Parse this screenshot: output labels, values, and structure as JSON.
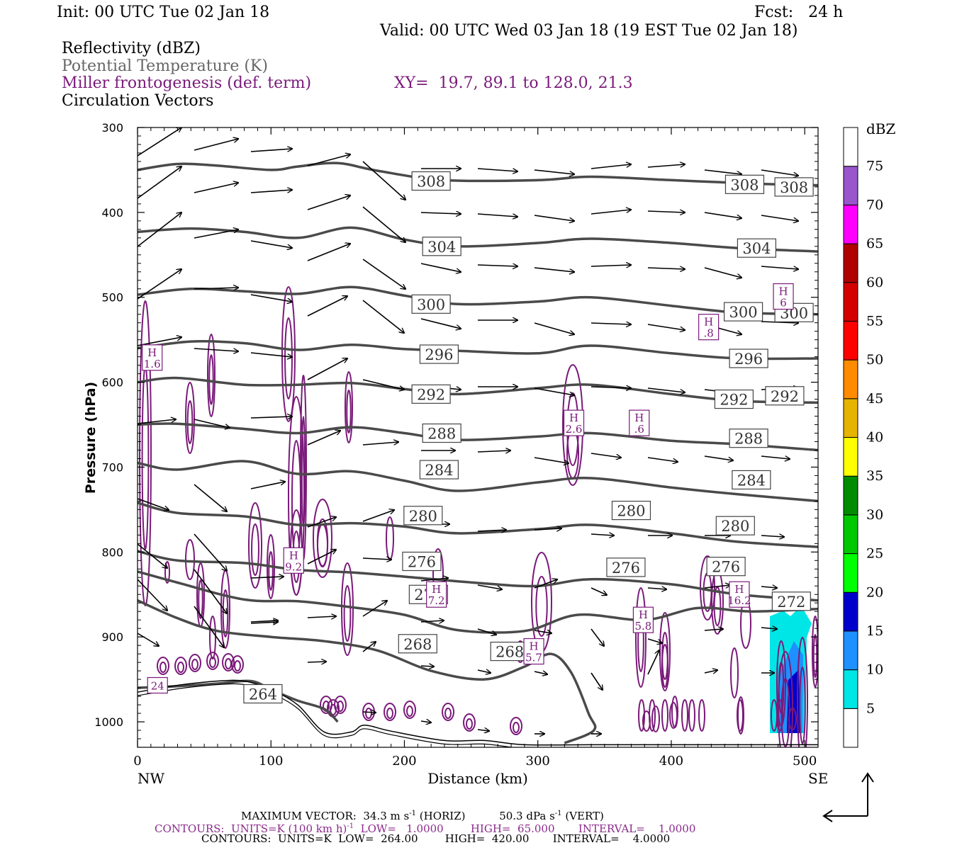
{
  "header": {
    "init": "Init: 00 UTC Tue 02 Jan 18",
    "fcst": "Fcst:   24 h",
    "valid": "Valid: 00 UTC Wed 03 Jan 18 (19 EST Tue 02 Jan 18)",
    "field1": "Reflectivity (dBZ)",
    "field2": "Potential Temperature (K)",
    "field3": "Miller frontogenesis (def. term)",
    "xy": "XY=  19.7, 89.1 to 128.0, 21.3",
    "field4": "Circulation Vectors"
  },
  "footer": {
    "max_vector": "MAXIMUM VECTOR:  34.3 m s",
    "horiz": "(HORIZ)",
    "vert": "50.3 dPa s",
    "vert_unit": "(VERT)",
    "contours1": "CONTOURS:  UNITS=K (100 km h)",
    "contours1_rest": "LOW=   1.0000        HIGH=  65.000       INTERVAL=    1.0000",
    "contours2": "CONTOURS:  UNITS=K  LOW=  264.00        HIGH=  420.00       INTERVAL=    4.0000"
  },
  "colors": {
    "theta": "#4a4a4a",
    "fronto": "#7a1a7a",
    "vector": "#000000",
    "terrain": "#000000"
  },
  "chart_data": {
    "type": "contour",
    "xlabel": "Distance (km)",
    "ylabel": "Pressure (hPa)",
    "xlim": [
      0,
      510
    ],
    "ylim": [
      1030,
      300
    ],
    "x_ticks": [
      0,
      100,
      200,
      300,
      400,
      500
    ],
    "y_ticks": [
      300,
      400,
      500,
      600,
      700,
      800,
      900,
      1000
    ],
    "x_end_labels": {
      "left": "NW",
      "right": "SE"
    },
    "colorbar": {
      "unit": "dBZ",
      "levels": [
        5,
        10,
        15,
        20,
        25,
        30,
        35,
        40,
        45,
        50,
        55,
        60,
        65,
        70,
        75
      ],
      "colors": [
        "#ffffff",
        "#00e6e6",
        "#1e90ff",
        "#0000cd",
        "#00ff00",
        "#00c800",
        "#008c00",
        "#ffff00",
        "#e6b400",
        "#ff8c00",
        "#ff0000",
        "#d40000",
        "#b00000",
        "#ff00ff",
        "#9955cc",
        "#ffffff"
      ]
    },
    "theta_contours": [
      {
        "value": 308,
        "points": [
          [
            0,
            350
          ],
          [
            30,
            343
          ],
          [
            60,
            345
          ],
          [
            100,
            350
          ],
          [
            120,
            346
          ],
          [
            150,
            342
          ],
          [
            180,
            351
          ],
          [
            230,
            362
          ],
          [
            300,
            362
          ],
          [
            340,
            358
          ],
          [
            400,
            362
          ],
          [
            460,
            366
          ],
          [
            510,
            368
          ]
        ]
      },
      {
        "value": 304,
        "points": [
          [
            0,
            423
          ],
          [
            40,
            419
          ],
          [
            80,
            423
          ],
          [
            120,
            430
          ],
          [
            160,
            418
          ],
          [
            200,
            432
          ],
          [
            240,
            440
          ],
          [
            300,
            436
          ],
          [
            340,
            431
          ],
          [
            400,
            436
          ],
          [
            450,
            442
          ],
          [
            510,
            446
          ]
        ]
      },
      {
        "value": 300,
        "points": [
          [
            0,
            497
          ],
          [
            40,
            490
          ],
          [
            80,
            493
          ],
          [
            120,
            496
          ],
          [
            160,
            488
          ],
          [
            200,
            498
          ],
          [
            240,
            508
          ],
          [
            300,
            505
          ],
          [
            340,
            500
          ],
          [
            400,
            510
          ],
          [
            450,
            518
          ],
          [
            510,
            520
          ]
        ]
      },
      {
        "value": 296,
        "points": [
          [
            0,
            560
          ],
          [
            40,
            552
          ],
          [
            80,
            554
          ],
          [
            120,
            562
          ],
          [
            160,
            556
          ],
          [
            200,
            561
          ],
          [
            240,
            563
          ],
          [
            300,
            566
          ],
          [
            340,
            557
          ],
          [
            400,
            566
          ],
          [
            450,
            572
          ],
          [
            510,
            572
          ]
        ]
      },
      {
        "value": 292,
        "points": [
          [
            0,
            600
          ],
          [
            30,
            595
          ],
          [
            80,
            603
          ],
          [
            120,
            603
          ],
          [
            160,
            601
          ],
          [
            200,
            608
          ],
          [
            240,
            614
          ],
          [
            300,
            607
          ],
          [
            340,
            603
          ],
          [
            400,
            614
          ],
          [
            450,
            622
          ],
          [
            510,
            624
          ]
        ]
      },
      {
        "value": 288,
        "points": [
          [
            0,
            650
          ],
          [
            30,
            649
          ],
          [
            80,
            655
          ],
          [
            120,
            660
          ],
          [
            160,
            653
          ],
          [
            200,
            660
          ],
          [
            240,
            668
          ],
          [
            300,
            664
          ],
          [
            340,
            660
          ],
          [
            400,
            669
          ],
          [
            450,
            673
          ],
          [
            510,
            680
          ]
        ]
      },
      {
        "value": 284,
        "points": [
          [
            0,
            695
          ],
          [
            30,
            703
          ],
          [
            80,
            693
          ],
          [
            120,
            708
          ],
          [
            160,
            705
          ],
          [
            200,
            716
          ],
          [
            240,
            728
          ],
          [
            300,
            718
          ],
          [
            340,
            713
          ],
          [
            400,
            724
          ],
          [
            450,
            732
          ],
          [
            510,
            740
          ]
        ]
      },
      {
        "value": 280,
        "points": [
          [
            0,
            742
          ],
          [
            30,
            754
          ],
          [
            80,
            758
          ],
          [
            120,
            768
          ],
          [
            160,
            766
          ],
          [
            200,
            770
          ],
          [
            240,
            778
          ],
          [
            300,
            773
          ],
          [
            340,
            768
          ],
          [
            400,
            778
          ],
          [
            450,
            788
          ],
          [
            510,
            794
          ]
        ]
      },
      {
        "value": 276,
        "points": [
          [
            0,
            799
          ],
          [
            30,
            810
          ],
          [
            80,
            813
          ],
          [
            120,
            821
          ],
          [
            160,
            824
          ],
          [
            200,
            829
          ],
          [
            260,
            837
          ],
          [
            300,
            840
          ],
          [
            340,
            832
          ],
          [
            400,
            838
          ],
          [
            450,
            850
          ],
          [
            510,
            857
          ]
        ]
      },
      {
        "value": 272,
        "points": [
          [
            0,
            823
          ],
          [
            30,
            836
          ],
          [
            80,
            856
          ],
          [
            120,
            858
          ],
          [
            160,
            865
          ],
          [
            200,
            874
          ],
          [
            240,
            892
          ],
          [
            290,
            893
          ],
          [
            330,
            874
          ],
          [
            380,
            880
          ],
          [
            420,
            866
          ],
          [
            460,
            870
          ],
          [
            510,
            867
          ]
        ]
      },
      {
        "value": 268,
        "points": [
          [
            0,
            857
          ],
          [
            30,
            878
          ],
          [
            60,
            893
          ],
          [
            100,
            900
          ],
          [
            140,
            905
          ],
          [
            180,
            916
          ],
          [
            220,
            940
          ],
          [
            260,
            950
          ],
          [
            290,
            935
          ],
          [
            310,
            920
          ],
          [
            325,
            942
          ],
          [
            338,
            990
          ],
          [
            342,
            1010
          ],
          [
            320,
            1025
          ]
        ]
      },
      {
        "value": 264,
        "points": [
          [
            0,
            960
          ],
          [
            30,
            958
          ],
          [
            60,
            955
          ],
          [
            85,
            952
          ],
          [
            100,
            962
          ],
          [
            120,
            975
          ],
          [
            140,
            985
          ],
          [
            150,
            1000
          ]
        ]
      }
    ],
    "theta_labels": [
      {
        "value": 308,
        "x": 220,
        "p": 363
      },
      {
        "value": 308,
        "x": 455,
        "p": 367
      },
      {
        "value": 308,
        "x": 492,
        "p": 370
      },
      {
        "value": 304,
        "x": 228,
        "p": 440
      },
      {
        "value": 304,
        "x": 464,
        "p": 442
      },
      {
        "value": 300,
        "x": 220,
        "p": 508
      },
      {
        "value": 300,
        "x": 454,
        "p": 517
      },
      {
        "value": 300,
        "x": 492,
        "p": 518
      },
      {
        "value": 296,
        "x": 226,
        "p": 567
      },
      {
        "value": 296,
        "x": 458,
        "p": 572
      },
      {
        "value": 292,
        "x": 220,
        "p": 614
      },
      {
        "value": 292,
        "x": 447,
        "p": 620
      },
      {
        "value": 292,
        "x": 485,
        "p": 616
      },
      {
        "value": 288,
        "x": 228,
        "p": 660
      },
      {
        "value": 288,
        "x": 458,
        "p": 666
      },
      {
        "value": 284,
        "x": 226,
        "p": 703
      },
      {
        "value": 284,
        "x": 460,
        "p": 715
      },
      {
        "value": 280,
        "x": 214,
        "p": 757
      },
      {
        "value": 280,
        "x": 370,
        "p": 751
      },
      {
        "value": 280,
        "x": 448,
        "p": 769
      },
      {
        "value": 276,
        "x": 213,
        "p": 811
      },
      {
        "value": 276,
        "x": 366,
        "p": 818
      },
      {
        "value": 276,
        "x": 441,
        "p": 817
      },
      {
        "value": 272,
        "x": 218,
        "p": 850
      },
      {
        "value": 272,
        "x": 490,
        "p": 858
      },
      {
        "value": 268,
        "x": 210,
        "p": 908
      },
      {
        "value": 268,
        "x": 279,
        "p": 917
      },
      {
        "value": 264,
        "x": 94,
        "p": 967
      }
    ],
    "fronto_maxima": [
      {
        "label": "H",
        "value": "1.6",
        "x": 11,
        "p": 571
      },
      {
        "label": "H",
        "value": "9.2",
        "x": 117,
        "p": 810
      },
      {
        "label": "H",
        "value": "7.2",
        "x": 224,
        "p": 850
      },
      {
        "label": "H",
        "value": "2.6",
        "x": 327,
        "p": 648
      },
      {
        "label": "H",
        "value": ".6",
        "x": 376,
        "p": 648
      },
      {
        "label": "H",
        "value": ".8",
        "x": 428,
        "p": 535
      },
      {
        "label": "H",
        "value": "6",
        "x": 484,
        "p": 499
      },
      {
        "label": "H",
        "value": "5.8",
        "x": 379,
        "p": 880
      },
      {
        "label": "H",
        "value": "5.7",
        "x": 297,
        "p": 917
      },
      {
        "label": "H",
        "value": "16.2",
        "x": 451,
        "p": 850
      },
      {
        "label": "",
        "value": "24",
        "x": 15,
        "p": 957
      }
    ],
    "terrain_surface": [
      [
        0,
        965
      ],
      [
        30,
        957
      ],
      [
        60,
        952
      ],
      [
        80,
        952
      ],
      [
        100,
        962
      ],
      [
        120,
        980
      ],
      [
        140,
        1012
      ],
      [
        160,
        1012
      ],
      [
        170,
        1004
      ],
      [
        190,
        1011
      ],
      [
        230,
        1022
      ],
      [
        260,
        1022
      ],
      [
        290,
        1027
      ],
      [
        340,
        1027
      ],
      [
        400,
        1027
      ],
      [
        510,
        1027
      ]
    ]
  }
}
